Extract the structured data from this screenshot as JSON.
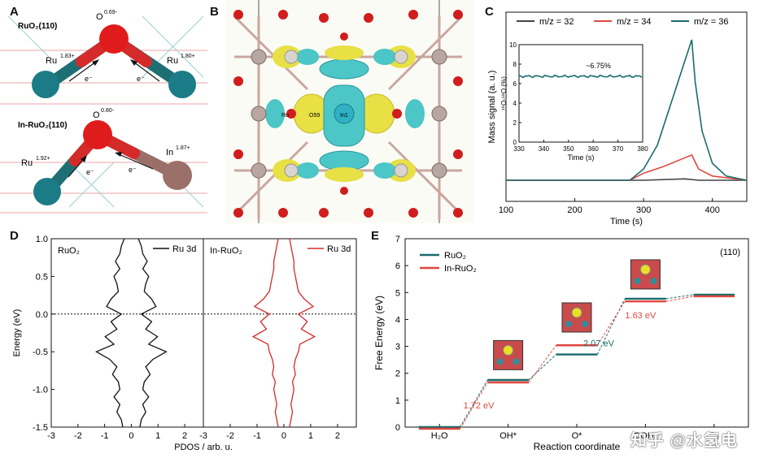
{
  "panels": {
    "A": {
      "label": "A",
      "top_title": "RuO₂(110)",
      "top_O": "O",
      "top_O_charge": "0.69-",
      "top_Ru_left": "Ru",
      "top_Ru_left_charge": "1.83+",
      "top_Ru_right": "Ru",
      "top_Ru_right_charge": "1.80+",
      "bottom_title": "In-RuO₂(110)",
      "bottom_O": "O",
      "bottom_O_charge": "0.80-",
      "bottom_Ru": "Ru",
      "bottom_Ru_charge": "1.92+",
      "bottom_In": "In",
      "bottom_In_charge": "1.87+",
      "electron": "e⁻"
    },
    "B": {
      "label": "B",
      "atom_Ru": "Ru",
      "atom_O": "O59",
      "atom_In": "In1"
    },
    "C": {
      "label": "C"
    },
    "D": {
      "label": "D"
    },
    "E": {
      "label": "E"
    }
  },
  "watermark": "知乎 @水氢电",
  "colors": {
    "teal": "#1a6b6b",
    "red": "#e0473f",
    "darkred": "#c0392b",
    "black": "#111111"
  },
  "chart_data": [
    {
      "panel": "C",
      "type": "line",
      "xlabel": "Time (s)",
      "ylabel": "Mass signal (a. u.)",
      "xlim": [
        100,
        450
      ],
      "xticks": [
        100,
        200,
        300,
        400
      ],
      "legend": [
        "m/z = 32",
        "m/z = 34",
        "m/z = 36"
      ],
      "series": [
        {
          "name": "m/z = 32",
          "color": "#444444",
          "x": [
            100,
            200,
            300,
            360,
            380,
            450
          ],
          "y": [
            0.0,
            0.0,
            0.0,
            0.01,
            0.0,
            0.0
          ]
        },
        {
          "name": "m/z = 34",
          "color": "#e0473f",
          "x": [
            100,
            280,
            300,
            330,
            360,
            370,
            380,
            400,
            450
          ],
          "y": [
            0.0,
            0.0,
            0.05,
            0.1,
            0.16,
            0.18,
            0.08,
            0.03,
            0.0
          ]
        },
        {
          "name": "m/z = 36",
          "color": "#1a6b6b",
          "x": [
            100,
            280,
            300,
            320,
            340,
            360,
            370,
            375,
            385,
            400,
            420,
            450
          ],
          "y": [
            0.0,
            0.0,
            0.08,
            0.25,
            0.55,
            0.85,
            1.0,
            0.7,
            0.35,
            0.12,
            0.03,
            0.0
          ]
        }
      ],
      "inset": {
        "xlabel": "Time (s)",
        "ylabel": "¹⁶O-¹⁸O (%)",
        "xlim": [
          330,
          380
        ],
        "ylim": [
          0,
          10
        ],
        "xticks": [
          330,
          340,
          350,
          360,
          370,
          380
        ],
        "yticks": [
          0,
          2,
          4,
          6,
          8,
          10
        ],
        "annotation": "~6.75%",
        "value": 6.75
      }
    },
    {
      "panel": "D",
      "type": "line",
      "xlabel": "PDOS / arb. u.",
      "ylabel": "Energy (eV)",
      "ylim": [
        -1.5,
        1.0
      ],
      "yticks": [
        -1.5,
        -1.0,
        -0.5,
        0.0,
        0.5,
        1.0
      ],
      "ytick_labels": [
        "-1.5",
        "-1.0",
        "-0.5",
        "0.0",
        "0.5",
        "1.0"
      ],
      "xticks_left": [
        -3,
        -2,
        -1,
        0,
        1,
        2
      ],
      "xticks_right": [
        -3,
        -2,
        -1,
        0,
        1,
        2
      ],
      "left_label": "RuO₂",
      "right_label": "In-RuO₂",
      "legend_left": "Ru 3d",
      "legend_right": "Ru 3d",
      "energy": [
        1.0,
        0.9,
        0.8,
        0.7,
        0.6,
        0.5,
        0.4,
        0.3,
        0.2,
        0.1,
        0.0,
        -0.1,
        -0.2,
        -0.3,
        -0.4,
        -0.5,
        -0.6,
        -0.7,
        -0.8,
        -0.9,
        -1.0,
        -1.1,
        -1.2,
        -1.3,
        -1.4,
        -1.5
      ],
      "ruo2_pdos": [
        0.3,
        0.5,
        0.6,
        0.9,
        0.6,
        1.0,
        0.8,
        0.7,
        1.2,
        1.5,
        0.5,
        1.2,
        0.8,
        1.6,
        1.0,
        2.2,
        1.3,
        0.8,
        1.1,
        0.7,
        0.6,
        1.0,
        0.6,
        0.8,
        0.5,
        0.4
      ],
      "in_ruo2_pdos": [
        0.2,
        0.3,
        0.4,
        0.5,
        0.5,
        0.6,
        0.7,
        0.8,
        1.2,
        1.8,
        0.8,
        1.4,
        1.0,
        1.9,
        0.9,
        0.8,
        0.6,
        0.5,
        0.6,
        0.4,
        0.5,
        0.4,
        0.3,
        0.4,
        0.3,
        0.2
      ]
    },
    {
      "panel": "E",
      "type": "line",
      "xlabel": "Reaction coordinate",
      "ylabel": "Free Energy (eV)",
      "ylim": [
        0,
        7
      ],
      "yticks": [
        0,
        1,
        2,
        3,
        4,
        5,
        6,
        7
      ],
      "categories": [
        "H₂O",
        "OH*",
        "O*",
        "OOH*",
        "O₂"
      ],
      "surface": "(110)",
      "series": [
        {
          "name": "RuO₂",
          "color": "#1a6b6b",
          "values": [
            0,
            1.75,
            2.7,
            4.77,
            4.92
          ]
        },
        {
          "name": "In-RuO₂",
          "color": "#e0473f",
          "values": [
            0,
            1.72,
            3.1,
            4.73,
            4.92
          ]
        }
      ],
      "annotations": [
        {
          "text": "1.72 eV",
          "color": "#e0473f"
        },
        {
          "text": "2.07 eV",
          "color": "#1a6b6b"
        },
        {
          "text": "1.63 eV",
          "color": "#e0473f"
        }
      ]
    }
  ]
}
